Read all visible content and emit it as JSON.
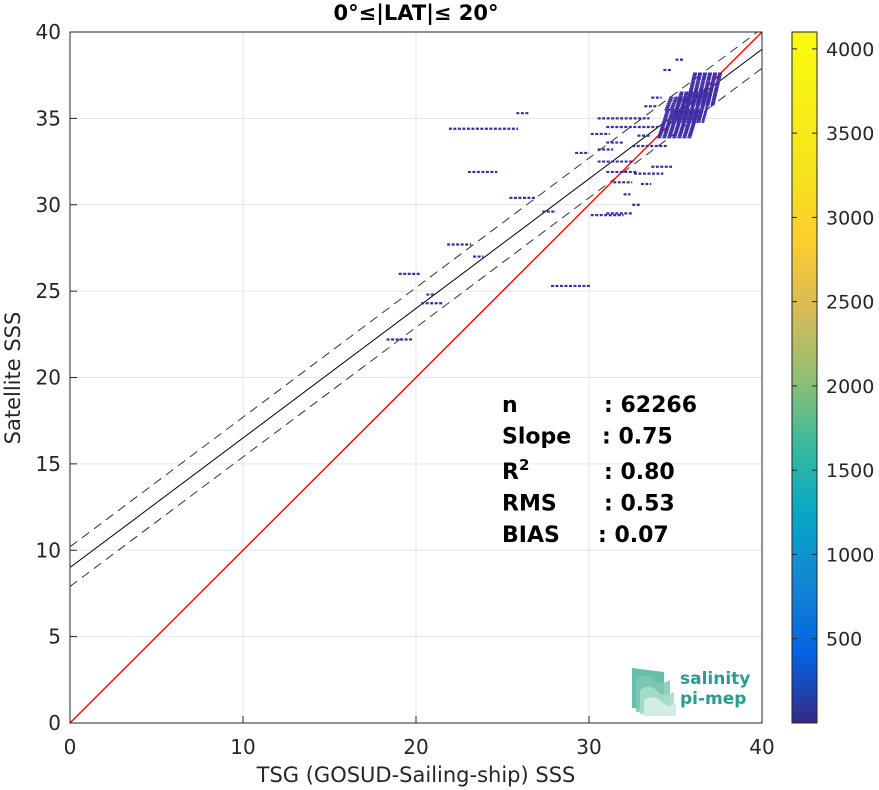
{
  "chart_data": {
    "type": "scatter",
    "title": "0°≤|LAT|≤ 20°",
    "xlabel": "TSG (GOSUD-Sailing-ship) SSS",
    "ylabel": "Satellite SSS",
    "xlim": [
      0,
      40
    ],
    "ylim": [
      0,
      40
    ],
    "xticks": [
      "0",
      "10",
      "20",
      "30",
      "40"
    ],
    "yticks": [
      "0",
      "5",
      "10",
      "15",
      "20",
      "25",
      "30",
      "35",
      "40"
    ],
    "grid": true,
    "colorbar": {
      "range": [
        0,
        4100
      ],
      "ticks": [
        "500",
        "1000",
        "1500",
        "2000",
        "2500",
        "3000",
        "3500",
        "4000"
      ],
      "colormap": "parula"
    },
    "lines": {
      "identity": {
        "slope": 1,
        "intercept": 0,
        "color": "#ff0000"
      },
      "fit": {
        "slope": 0.75,
        "intercept": 9.0,
        "color": "#000000"
      },
      "fit_upper": {
        "slope": 0.75,
        "intercept": 10.2,
        "style": "dashed"
      },
      "fit_lower": {
        "slope": 0.75,
        "intercept": 7.9,
        "style": "dashed"
      }
    },
    "stats": [
      {
        "label": "n",
        "value": ": 62266"
      },
      {
        "label": "Slope",
        "value": ": 0.75"
      },
      {
        "label": "R",
        "sup": "2",
        "value": ": 0.80"
      },
      {
        "label": "RMS",
        "value": ": 0.53"
      },
      {
        "label": "BIAS",
        "value": ": 0.07"
      }
    ],
    "density_segments": [
      {
        "x1": 21.9,
        "x2": 25.9,
        "y": 34.4
      },
      {
        "x1": 25.8,
        "x2": 26.5,
        "y": 35.3
      },
      {
        "x1": 23.0,
        "x2": 24.7,
        "y": 31.9
      },
      {
        "x1": 25.4,
        "x2": 26.9,
        "y": 30.4
      },
      {
        "x1": 27.3,
        "x2": 28.1,
        "y": 29.6
      },
      {
        "x1": 30.1,
        "x2": 32.0,
        "y": 29.4
      },
      {
        "x1": 31.0,
        "x2": 32.5,
        "y": 29.5
      },
      {
        "x1": 32.5,
        "x2": 33.0,
        "y": 30.0
      },
      {
        "x1": 21.8,
        "x2": 23.2,
        "y": 27.7
      },
      {
        "x1": 23.3,
        "x2": 23.9,
        "y": 27.0
      },
      {
        "x1": 27.8,
        "x2": 30.1,
        "y": 25.3
      },
      {
        "x1": 19.0,
        "x2": 20.3,
        "y": 26.0
      },
      {
        "x1": 20.6,
        "x2": 21.1,
        "y": 24.8
      },
      {
        "x1": 20.3,
        "x2": 21.6,
        "y": 24.3
      },
      {
        "x1": 18.3,
        "x2": 19.8,
        "y": 22.2
      },
      {
        "x1": 29.2,
        "x2": 30.0,
        "y": 33.0
      },
      {
        "x1": 30.5,
        "x2": 32.6,
        "y": 32.5
      },
      {
        "x1": 31.0,
        "x2": 32.8,
        "y": 31.9
      },
      {
        "x1": 32.6,
        "x2": 34.3,
        "y": 31.8
      },
      {
        "x1": 31.4,
        "x2": 32.5,
        "y": 31.3
      },
      {
        "x1": 30.5,
        "x2": 33.5,
        "y": 35.0
      },
      {
        "x1": 31.0,
        "x2": 34.0,
        "y": 34.5
      },
      {
        "x1": 32.5,
        "x2": 34.5,
        "y": 33.4
      },
      {
        "x1": 30.1,
        "x2": 31.2,
        "y": 34.1
      },
      {
        "x1": 32.8,
        "x2": 33.6,
        "y": 34.0
      },
      {
        "x1": 31.0,
        "x2": 32.0,
        "y": 33.6
      },
      {
        "x1": 30.5,
        "x2": 31.4,
        "y": 33.2
      },
      {
        "x1": 33.6,
        "x2": 34.8,
        "y": 32.2
      },
      {
        "x1": 33.0,
        "x2": 33.6,
        "y": 31.2
      },
      {
        "x1": 32.0,
        "x2": 32.4,
        "y": 30.6
      },
      {
        "x1": 34.3,
        "x2": 34.8,
        "y": 37.8
      },
      {
        "x1": 35.0,
        "x2": 35.5,
        "y": 38.4
      },
      {
        "x1": 33.6,
        "x2": 34.2,
        "y": 36.2
      },
      {
        "x1": 33.2,
        "x2": 33.9,
        "y": 35.7
      }
    ],
    "density_clusters": [
      {
        "x1": 34.2,
        "x2": 36.2,
        "y1": 33.9,
        "y2": 35.5
      },
      {
        "x1": 35.0,
        "x2": 36.9,
        "y1": 34.8,
        "y2": 36.5
      },
      {
        "x1": 35.8,
        "x2": 37.5,
        "y1": 35.8,
        "y2": 37.6
      },
      {
        "x1": 34.5,
        "x2": 35.6,
        "y1": 35.5,
        "y2": 36.2
      }
    ]
  },
  "logo": {
    "line1": "salinity",
    "line2": "pi-mep"
  }
}
